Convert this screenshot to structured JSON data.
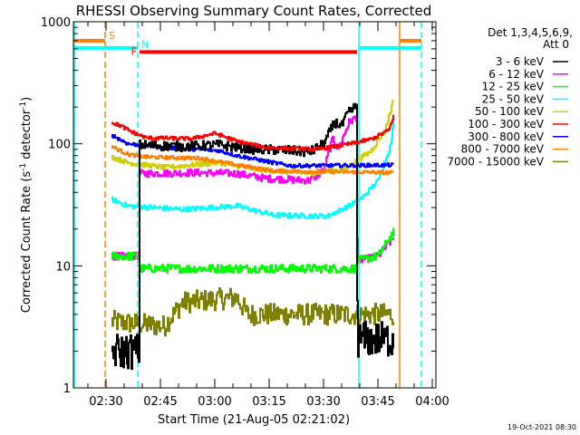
{
  "chart_data": {
    "type": "line",
    "title": "RHESSI Observing Summary Count Rates, Corrected",
    "xlabel": "Start Time (21-Aug-05 02:21:02)",
    "ylabel": "Corrected Count Rate (s",
    "ylabel_sup1": "-1",
    "ylabel_mid": " detector",
    "ylabel_sup2": "-1",
    "ylabel_end": ")",
    "x_units": "minutes since 02:21",
    "xlim": [
      0,
      100
    ],
    "ylim": [
      1,
      1000
    ],
    "yscale": "log",
    "x_ticks": [
      {
        "t": 9,
        "label": "02:30"
      },
      {
        "t": 24,
        "label": "02:45"
      },
      {
        "t": 39,
        "label": "03:00"
      },
      {
        "t": 54,
        "label": "03:15"
      },
      {
        "t": 69,
        "label": "03:30"
      },
      {
        "t": 84,
        "label": "03:45"
      },
      {
        "t": 99,
        "label": "04:00"
      }
    ],
    "y_ticks": [
      {
        "v": 1,
        "label": "1"
      },
      {
        "v": 10,
        "label": "10"
      },
      {
        "v": 100,
        "label": "100"
      },
      {
        "v": 1000,
        "label": "1000"
      }
    ],
    "legend": {
      "header1": "Det 1,3,4,5,6,9,",
      "header2": "Att 0",
      "placement": "right"
    },
    "series": [
      {
        "name": "3 - 6 keV",
        "color": "#000000",
        "noise": 0.04,
        "points": [
          [
            10.5,
            2
          ],
          [
            18,
            2
          ],
          [
            18.2,
            98
          ],
          [
            30,
            95
          ],
          [
            40,
            98
          ],
          [
            50,
            90
          ],
          [
            60,
            88
          ],
          [
            65,
            85
          ],
          [
            69,
            100
          ],
          [
            72,
            150
          ],
          [
            74,
            140
          ],
          [
            75.5,
            175
          ],
          [
            78,
            205
          ],
          [
            78.3,
            2.5
          ],
          [
            88.25,
            2.5
          ]
        ]
      },
      {
        "name": "6 - 12 keV",
        "color": "#ff00ff",
        "noise": 0.03,
        "points": [
          [
            10.5,
            12
          ],
          [
            18,
            12
          ],
          [
            18.2,
            57
          ],
          [
            35,
            58
          ],
          [
            45,
            57
          ],
          [
            53,
            52
          ],
          [
            65,
            50
          ],
          [
            69,
            60
          ],
          [
            70,
            78
          ],
          [
            71.5,
            110
          ],
          [
            73,
            90
          ],
          [
            76,
            150
          ],
          [
            78,
            165
          ],
          [
            78.3,
            11
          ],
          [
            84,
            12
          ],
          [
            88.25,
            17
          ]
        ]
      },
      {
        "name": "12 - 25 keV",
        "color": "#00ff00",
        "noise": 0.035,
        "points": [
          [
            10.5,
            12
          ],
          [
            18,
            12
          ],
          [
            18.2,
            9.5
          ],
          [
            78,
            9.5
          ],
          [
            78.3,
            11
          ],
          [
            84,
            12
          ],
          [
            88.25,
            19
          ]
        ]
      },
      {
        "name": "25 - 50 keV",
        "color": "#00ffff",
        "noise": 0.02,
        "points": [
          [
            10.5,
            35
          ],
          [
            15,
            31
          ],
          [
            30,
            29
          ],
          [
            45,
            31
          ],
          [
            55,
            26
          ],
          [
            70,
            25.5
          ],
          [
            76,
            31
          ],
          [
            80,
            37
          ],
          [
            84,
            50
          ],
          [
            87.5,
            98
          ],
          [
            88.25,
            150
          ]
        ]
      },
      {
        "name": "50 - 100 keV",
        "color": "#d0d000",
        "noise": 0.02,
        "points": [
          [
            10.5,
            78
          ],
          [
            15,
            70
          ],
          [
            25,
            64
          ],
          [
            40,
            70
          ],
          [
            50,
            62
          ],
          [
            65,
            57
          ],
          [
            75,
            62
          ],
          [
            78,
            73
          ],
          [
            82,
            87
          ],
          [
            86,
            130
          ],
          [
            88.25,
            230
          ]
        ]
      },
      {
        "name": "100 - 300 keV",
        "color": "#ff0000",
        "noise": 0.015,
        "points": [
          [
            10.5,
            150
          ],
          [
            13,
            140
          ],
          [
            15.75,
            126
          ],
          [
            20,
            112
          ],
          [
            32.5,
            110
          ],
          [
            39,
            122
          ],
          [
            45,
            105
          ],
          [
            53,
            93
          ],
          [
            67.5,
            90
          ],
          [
            77,
            101
          ],
          [
            82.5,
            110
          ],
          [
            87,
            130
          ],
          [
            88.25,
            170
          ]
        ]
      },
      {
        "name": "300 - 800 keV",
        "color": "#0000ff",
        "noise": 0.015,
        "points": [
          [
            10.5,
            118
          ],
          [
            15,
            100
          ],
          [
            25,
            93
          ],
          [
            40,
            88
          ],
          [
            45,
            80
          ],
          [
            55,
            70
          ],
          [
            60,
            66
          ],
          [
            88.25,
            67
          ]
        ]
      },
      {
        "name": "800 - 7000 keV",
        "color": "#ff8000",
        "noise": 0.015,
        "points": [
          [
            10.5,
            95
          ],
          [
            15,
            82
          ],
          [
            20,
            78
          ],
          [
            35,
            76
          ],
          [
            45,
            67
          ],
          [
            55,
            60
          ],
          [
            88.25,
            58
          ]
        ]
      },
      {
        "name": "7000 - 15000 keV",
        "color": "#808000",
        "noise": 0.09,
        "points": [
          [
            10.5,
            3.5
          ],
          [
            25,
            3.2
          ],
          [
            30,
            5
          ],
          [
            45,
            5.5
          ],
          [
            48,
            4
          ],
          [
            78,
            4
          ],
          [
            88.25,
            4
          ]
        ]
      }
    ],
    "annotations": {
      "vlines": [
        {
          "t": 0.25,
          "color": "#00ffff",
          "dash": false
        },
        {
          "t": 8.75,
          "color": "#ff8000",
          "dash": true
        },
        {
          "t": 17.75,
          "color": "#00ffff",
          "dash": true
        },
        {
          "t": 78.75,
          "color": "#00ffff",
          "dash": false
        },
        {
          "t": 90,
          "color": "#ff8000",
          "dash": false
        },
        {
          "t": 96,
          "color": "#00ffff",
          "dash": true
        }
      ],
      "bars": [
        {
          "label": "S",
          "color": "#ff8000",
          "value": 700,
          "ranges": [
            [
              0.25,
              8.75
            ],
            [
              90,
              96
            ]
          ]
        },
        {
          "label": "N",
          "color": "#00ffff",
          "value": 610,
          "ranges": [
            [
              0.25,
              17.75
            ],
            [
              78.75,
              96
            ]
          ]
        },
        {
          "label": "F",
          "color": "#ff0000",
          "value": 565,
          "ranges": [
            [
              18.25,
              78.25
            ]
          ]
        }
      ]
    }
  },
  "footer": {
    "timestamp": "19-Oct-2021 08:30"
  }
}
